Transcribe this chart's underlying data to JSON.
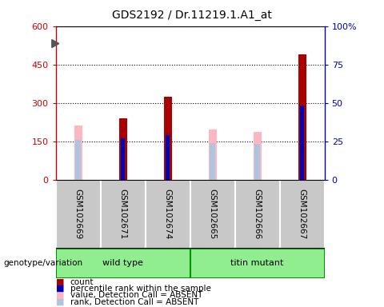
{
  "title": "GDS2192 / Dr.11219.1.A1_at",
  "samples": [
    "GSM102669",
    "GSM102671",
    "GSM102674",
    "GSM102665",
    "GSM102666",
    "GSM102667"
  ],
  "group_wt": [
    0,
    1,
    2
  ],
  "group_tm": [
    3,
    4,
    5
  ],
  "count_values": [
    0,
    240,
    325,
    0,
    0,
    490
  ],
  "rank_percent_values": [
    0,
    27,
    29,
    0,
    0,
    48
  ],
  "absent_value_bars": [
    210,
    0,
    0,
    195,
    185,
    0
  ],
  "absent_rank_percent": [
    26,
    0,
    0,
    24,
    23,
    0
  ],
  "ylim_left": [
    0,
    600
  ],
  "ylim_right": [
    0,
    100
  ],
  "yticks_left": [
    0,
    150,
    300,
    450,
    600
  ],
  "yticks_right": [
    0,
    25,
    50,
    75,
    100
  ],
  "ytick_labels_left": [
    "0",
    "150",
    "300",
    "450",
    "600"
  ],
  "ytick_labels_right": [
    "0",
    "25",
    "50",
    "75",
    "100%"
  ],
  "count_color": "#AA0000",
  "rank_color": "#0000BB",
  "absent_value_color": "#FFB6C1",
  "absent_rank_color": "#B0C4DE",
  "gray_color": "#C8C8C8",
  "green_color": "#90EE90",
  "dark_green": "#32CD32",
  "legend_items": [
    {
      "label": "count",
      "color": "#AA0000"
    },
    {
      "label": "percentile rank within the sample",
      "color": "#0000BB"
    },
    {
      "label": "value, Detection Call = ABSENT",
      "color": "#FFB6C1"
    },
    {
      "label": "rank, Detection Call = ABSENT",
      "color": "#B0C4DE"
    }
  ]
}
